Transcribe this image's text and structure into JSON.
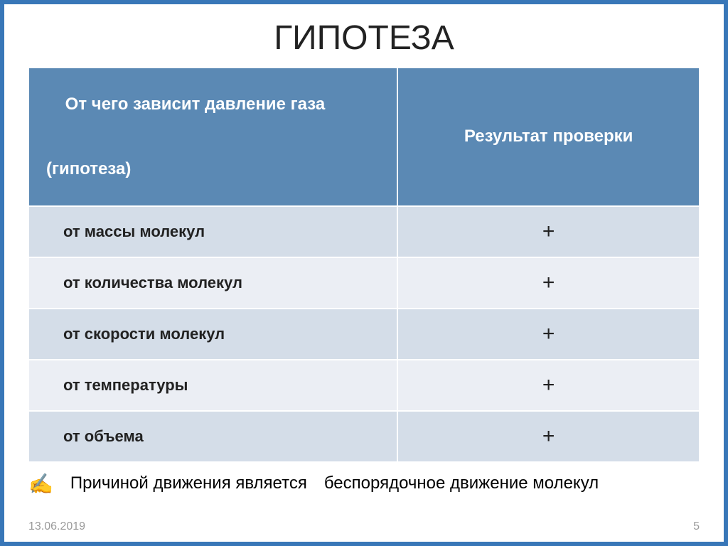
{
  "slide": {
    "title": "ГИПОТЕЗА",
    "table": {
      "header_col1_line1": "От чего зависит давление газа",
      "header_col1_line2": "(гипотеза)",
      "header_col2": "Результат проверки",
      "rows": [
        {
          "label": "от массы молекул",
          "result": "+"
        },
        {
          "label": "от количества молекул",
          "result": "+"
        },
        {
          "label": "от скорости молекул",
          "result": "+"
        },
        {
          "label": "от температуры",
          "result": "+"
        },
        {
          "label": "от объема",
          "result": "+"
        }
      ]
    },
    "caption_icon": "✍",
    "caption_left": "Причиной движения является",
    "caption_right": "беспорядочное движение молекул",
    "footer_date": "13.06.2019",
    "footer_page": "5"
  },
  "style": {
    "border_color": "#3877b8",
    "header_bg": "#5b89b4",
    "header_text": "#ffffff",
    "row_odd_bg": "#d4dde8",
    "row_even_bg": "#ebeef4",
    "body_text": "#222222",
    "footer_text": "#9a9a9a",
    "title_fontsize": 48,
    "header_fontsize": 24,
    "row_fontsize": 22,
    "caption_fontsize": 24,
    "footer_fontsize": 16
  }
}
